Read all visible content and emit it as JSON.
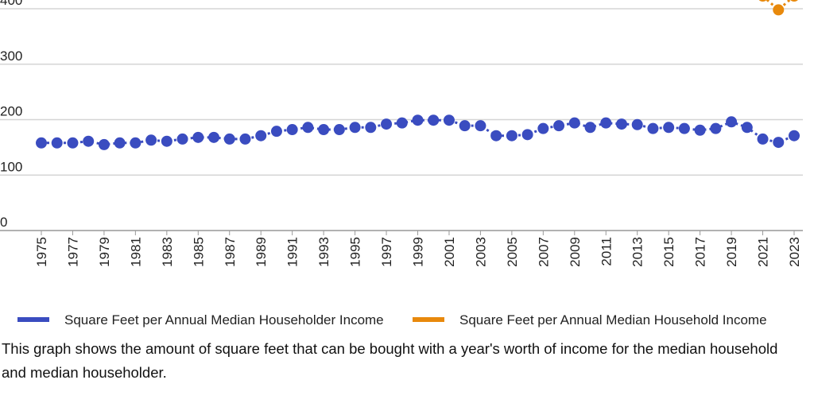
{
  "chart_data": {
    "type": "scatter",
    "caption": "This graph shows the amount of square feet that can be bought with a year's worth of income for the median household and median householder.",
    "x": [
      1975,
      1976,
      1977,
      1978,
      1979,
      1980,
      1981,
      1982,
      1983,
      1984,
      1985,
      1986,
      1987,
      1988,
      1989,
      1990,
      1991,
      1992,
      1993,
      1994,
      1995,
      1996,
      1997,
      1998,
      1999,
      2000,
      2001,
      2002,
      2003,
      2004,
      2005,
      2006,
      2007,
      2008,
      2009,
      2010,
      2011,
      2012,
      2013,
      2014,
      2015,
      2016,
      2017,
      2018,
      2019,
      2020,
      2021,
      2022,
      2023
    ],
    "series": [
      {
        "name": "Square Feet per Annual Median Householder Income",
        "color": "#3a4cc0",
        "values": [
          158,
          158,
          158,
          161,
          155,
          158,
          158,
          163,
          161,
          165,
          168,
          168,
          165,
          165,
          171,
          179,
          182,
          186,
          182,
          182,
          186,
          186,
          192,
          194,
          199,
          199,
          199,
          189,
          189,
          171,
          171,
          173,
          184,
          189,
          194,
          186,
          194,
          192,
          191,
          184,
          186,
          184,
          181,
          184,
          196,
          186,
          165,
          159,
          171
        ]
      },
      {
        "name": "Square Feet per Annual Median Household Income",
        "color": "#e8890c",
        "values": [
          null,
          null,
          null,
          null,
          null,
          null,
          null,
          null,
          null,
          null,
          null,
          null,
          null,
          null,
          null,
          null,
          null,
          null,
          null,
          null,
          null,
          null,
          null,
          null,
          null,
          null,
          null,
          null,
          null,
          null,
          null,
          null,
          null,
          null,
          null,
          null,
          null,
          null,
          null,
          null,
          null,
          null,
          null,
          null,
          null,
          null,
          423,
          398,
          423
        ]
      }
    ],
    "xlim": [
      1975,
      2023
    ],
    "xticks": [
      1975,
      1977,
      1979,
      1981,
      1983,
      1985,
      1987,
      1989,
      1991,
      1993,
      1995,
      1997,
      1999,
      2001,
      2003,
      2005,
      2007,
      2009,
      2011,
      2013,
      2015,
      2017,
      2019,
      2021,
      2023
    ],
    "ylim": [
      0,
      400
    ],
    "yticks": [
      0,
      100,
      200,
      300,
      400
    ],
    "grid": true
  }
}
